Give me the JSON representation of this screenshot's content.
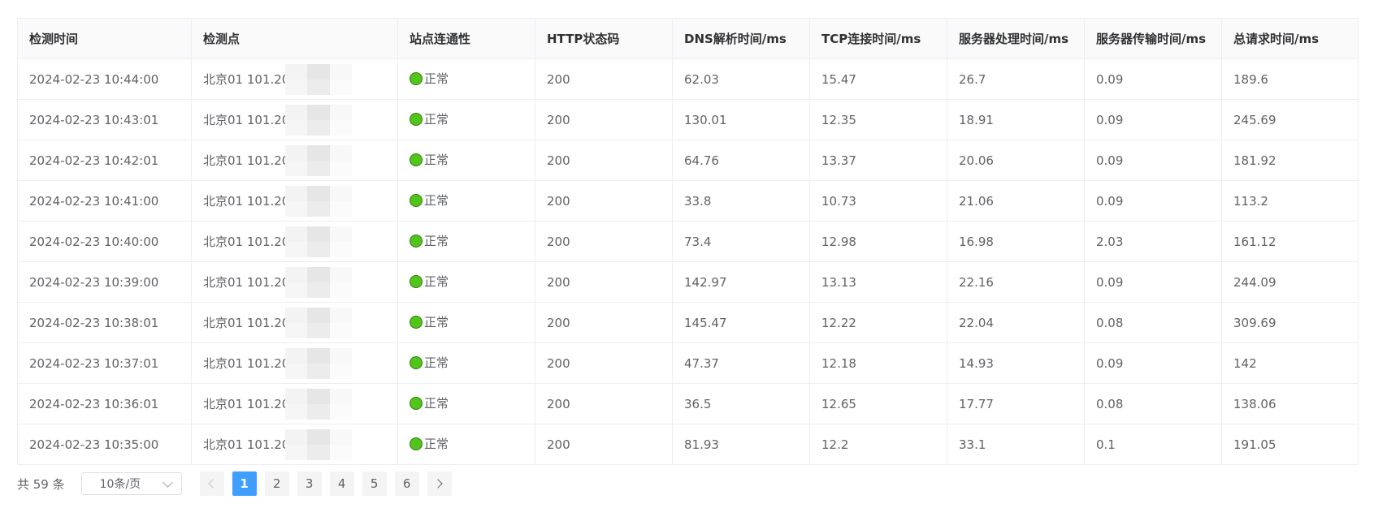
{
  "table": {
    "columns": [
      "检测时间",
      "检测点",
      "站点连通性",
      "HTTP状态码",
      "DNS解析时间/ms",
      "TCP连接时间/ms",
      "服务器处理时间/ms",
      "服务器传输时间/ms",
      "总请求时间/ms"
    ],
    "rows": [
      {
        "time": "2024-02-23 10:44:00",
        "point": "北京01 101.20",
        "status": "正常",
        "http": "200",
        "dns": "62.03",
        "tcp": "15.47",
        "proc": "26.7",
        "trans": "0.09",
        "total": "189.6"
      },
      {
        "time": "2024-02-23 10:43:01",
        "point": "北京01 101.20",
        "status": "正常",
        "http": "200",
        "dns": "130.01",
        "tcp": "12.35",
        "proc": "18.91",
        "trans": "0.09",
        "total": "245.69"
      },
      {
        "time": "2024-02-23 10:42:01",
        "point": "北京01 101.20",
        "status": "正常",
        "http": "200",
        "dns": "64.76",
        "tcp": "13.37",
        "proc": "20.06",
        "trans": "0.09",
        "total": "181.92"
      },
      {
        "time": "2024-02-23 10:41:00",
        "point": "北京01 101.20",
        "status": "正常",
        "http": "200",
        "dns": "33.8",
        "tcp": "10.73",
        "proc": "21.06",
        "trans": "0.09",
        "total": "113.2"
      },
      {
        "time": "2024-02-23 10:40:00",
        "point": "北京01 101.20",
        "status": "正常",
        "http": "200",
        "dns": "73.4",
        "tcp": "12.98",
        "proc": "16.98",
        "trans": "2.03",
        "total": "161.12"
      },
      {
        "time": "2024-02-23 10:39:00",
        "point": "北京01 101.20",
        "status": "正常",
        "http": "200",
        "dns": "142.97",
        "tcp": "13.13",
        "proc": "22.16",
        "trans": "0.09",
        "total": "244.09"
      },
      {
        "time": "2024-02-23 10:38:01",
        "point": "北京01 101.20",
        "status": "正常",
        "http": "200",
        "dns": "145.47",
        "tcp": "12.22",
        "proc": "22.04",
        "trans": "0.08",
        "total": "309.69"
      },
      {
        "time": "2024-02-23 10:37:01",
        "point": "北京01 101.20",
        "status": "正常",
        "http": "200",
        "dns": "47.37",
        "tcp": "12.18",
        "proc": "14.93",
        "trans": "0.09",
        "total": "142"
      },
      {
        "time": "2024-02-23 10:36:01",
        "point": "北京01 101.20",
        "status": "正常",
        "http": "200",
        "dns": "36.5",
        "tcp": "12.65",
        "proc": "17.77",
        "trans": "0.08",
        "total": "138.06"
      },
      {
        "time": "2024-02-23 10:35:00",
        "point": "北京01 101.20",
        "status": "正常",
        "http": "200",
        "dns": "81.93",
        "tcp": "12.2",
        "proc": "33.1",
        "trans": "0.1",
        "total": "191.05"
      }
    ]
  },
  "pagination": {
    "total_text": "共 59 条",
    "page_size": "10条/页",
    "pages": [
      "1",
      "2",
      "3",
      "4",
      "5",
      "6"
    ],
    "current": "1"
  },
  "colors": {
    "status_ok": "#52c41a",
    "active_page": "#409eff"
  },
  "icons": {
    "status": "green-dot-icon",
    "prev": "chevron-left-icon",
    "next": "chevron-right-icon",
    "select": "chevron-down-icon"
  }
}
